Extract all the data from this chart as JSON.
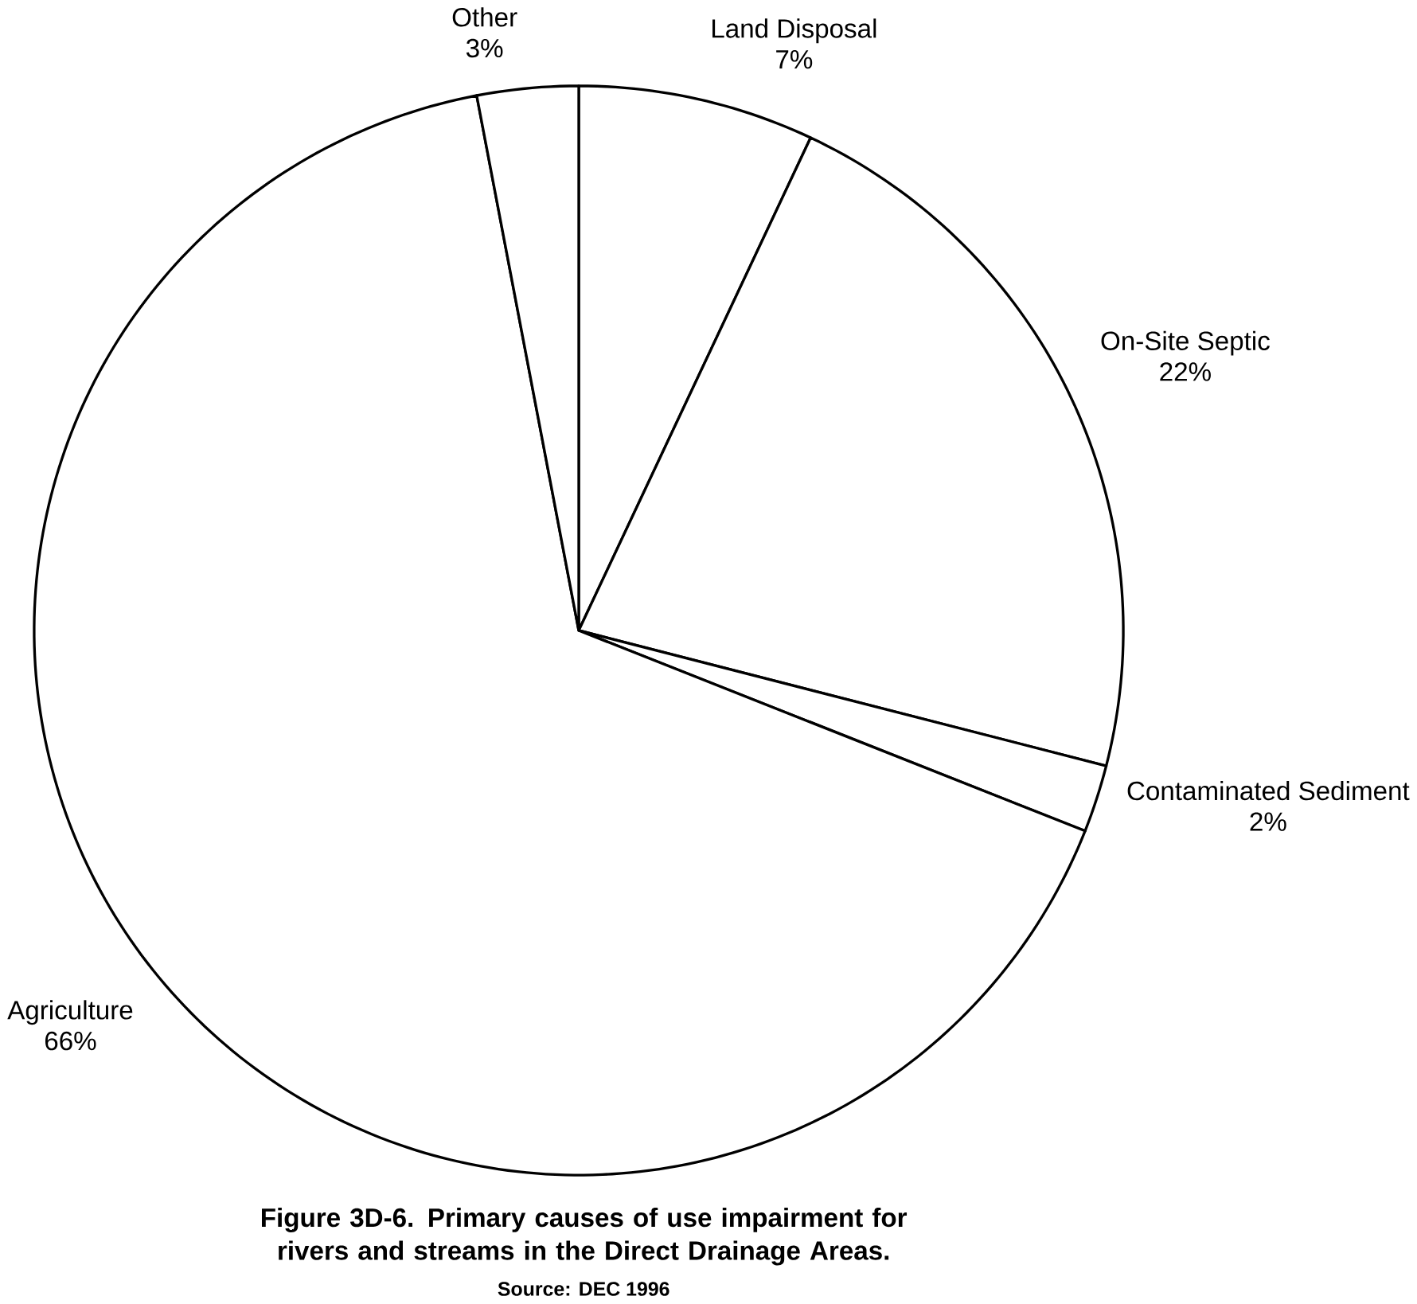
{
  "chart_data": {
    "type": "pie",
    "title": "Figure 3D-6. Primary causes of use impairment for rivers and streams in the Direct Drainage Areas.",
    "categories": [
      "Land Disposal",
      "On-Site Septic",
      "Contaminated Sediment",
      "Agriculture",
      "Other"
    ],
    "values": [
      7,
      22,
      2,
      66,
      3
    ],
    "value_labels": [
      "7%",
      "22%",
      "2%",
      "66%",
      "3%"
    ],
    "colors": [
      "#ffffff",
      "#ffffff",
      "#ffffff",
      "#ffffff",
      "#ffffff"
    ],
    "annotations": [
      "Source: DEC 1996"
    ]
  }
}
